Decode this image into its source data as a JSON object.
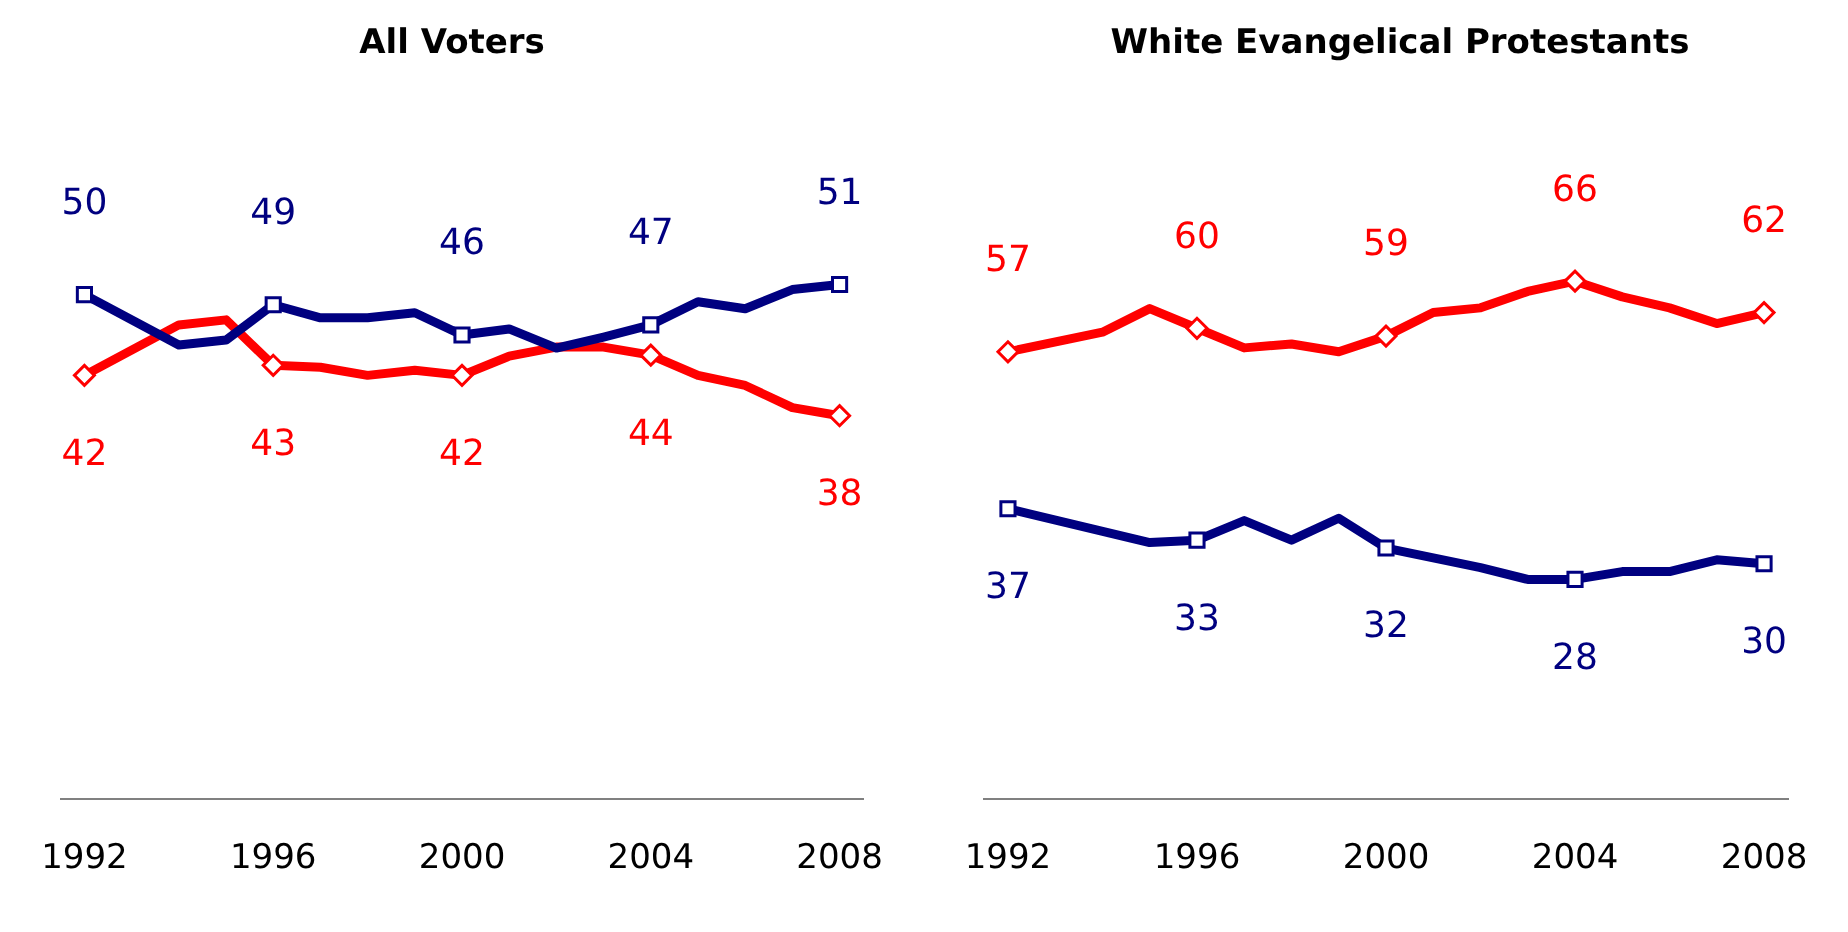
{
  "chart_data": [
    {
      "type": "line",
      "title": "All Voters",
      "xlim": [
        1991.5,
        2008.5
      ],
      "xticks": [
        1992,
        1996,
        2000,
        2004,
        2008
      ],
      "tick_labels": "x",
      "grid": false,
      "series": [
        {
          "color": "#000080",
          "x": [
            1992,
            1994,
            1995,
            1996,
            1997,
            1998,
            1999,
            2000,
            2001,
            2002,
            2003,
            2004,
            2005,
            2006,
            2007,
            2008
          ],
          "values": [
            50,
            45,
            45.5,
            49,
            47.7,
            47.7,
            48.2,
            46,
            46.6,
            44.7,
            45.8,
            47,
            49.3,
            48.6,
            50.5,
            51
          ],
          "value_labels": [
            "50",
            null,
            null,
            "49",
            null,
            null,
            null,
            "46",
            null,
            null,
            null,
            "47",
            null,
            null,
            null,
            "51"
          ]
        },
        {
          "color": "#ff0000",
          "x": [
            1992,
            1994,
            1995,
            1996,
            1997,
            1998,
            1999,
            2000,
            2001,
            2002,
            2003,
            2004,
            2005,
            2006,
            2007,
            2008
          ],
          "values": [
            42,
            47,
            47.5,
            43,
            42.8,
            42,
            42.5,
            42,
            43.9,
            44.8,
            44.8,
            44,
            42,
            41,
            38.8,
            38
          ],
          "value_labels": [
            "42",
            null,
            null,
            "43",
            null,
            null,
            null,
            "42",
            null,
            null,
            null,
            "44",
            null,
            null,
            null,
            "38"
          ]
        }
      ]
    },
    {
      "type": "line",
      "title": "White Evangelical Protestants",
      "xlim": [
        1991.5,
        2008.5
      ],
      "xticks": [
        1992,
        1996,
        2000,
        2004,
        2008
      ],
      "tick_labels": "x",
      "grid": false,
      "series": [
        {
          "color": "#000080",
          "x": [
            1992,
            1995,
            1996,
            1997,
            1998,
            1999,
            2000,
            2002,
            2003,
            2004,
            2005,
            2006,
            2007,
            2008
          ],
          "values": [
            37,
            32.7,
            33,
            35.5,
            33,
            35.8,
            32,
            29.5,
            28,
            28,
            29,
            29,
            30.5,
            30
          ],
          "value_labels": [
            "37",
            null,
            "33",
            null,
            null,
            null,
            "32",
            null,
            null,
            "28",
            null,
            null,
            null,
            "30"
          ]
        },
        {
          "color": "#ff0000",
          "x": [
            1992,
            1994,
            1995,
            1996,
            1997,
            1998,
            1999,
            2000,
            2001,
            2002,
            2003,
            2004,
            2005,
            2006,
            2007,
            2008
          ],
          "values": [
            57,
            59.5,
            62.5,
            60,
            57.5,
            58,
            57,
            59,
            62,
            62.6,
            64.7,
            66,
            64,
            62.6,
            60.6,
            62
          ],
          "value_labels": [
            "57",
            null,
            null,
            "60",
            null,
            null,
            null,
            "59",
            null,
            null,
            null,
            "66",
            null,
            null,
            null,
            "62"
          ]
        }
      ]
    }
  ]
}
